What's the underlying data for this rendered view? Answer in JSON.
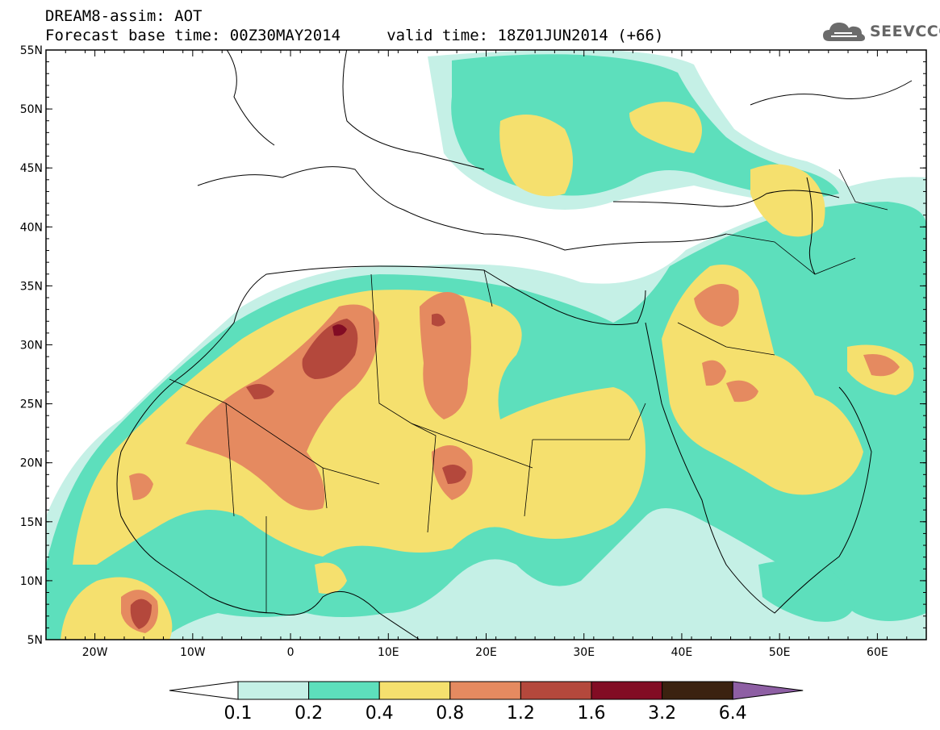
{
  "header": {
    "title_line1": "DREAM8-assim: AOT",
    "title_line2": "Forecast base time: 00Z30MAY2014     valid time: 18Z01JUN2014 (+66)"
  },
  "logo": {
    "text": "SEEVCCC",
    "icon": "cloud-icon"
  },
  "map": {
    "lat_labels": [
      "55N",
      "50N",
      "45N",
      "40N",
      "35N",
      "30N",
      "25N",
      "20N",
      "15N",
      "10N",
      "5N"
    ],
    "lon_labels": [
      "20W",
      "10W",
      "0",
      "10E",
      "20E",
      "30E",
      "40E",
      "50E",
      "60E"
    ],
    "lat_range": [
      5,
      55
    ],
    "lon_range": [
      -25,
      65
    ]
  },
  "colorbar": {
    "labels": [
      "0.1",
      "0.2",
      "0.4",
      "0.8",
      "1.2",
      "1.6",
      "3.2",
      "6.4"
    ],
    "colors": [
      "#ffffff",
      "#c5f0e6",
      "#5ddfbc",
      "#f5e06e",
      "#e58a60",
      "#b4483c",
      "#820c24",
      "#3b2210",
      "#8e5fa4"
    ]
  },
  "palette": {
    "c1": "#c5f0e6",
    "c2": "#5ddfbc",
    "c3": "#f5e06e",
    "c4": "#e58a60",
    "c5": "#b4483c",
    "c6": "#820c24"
  }
}
